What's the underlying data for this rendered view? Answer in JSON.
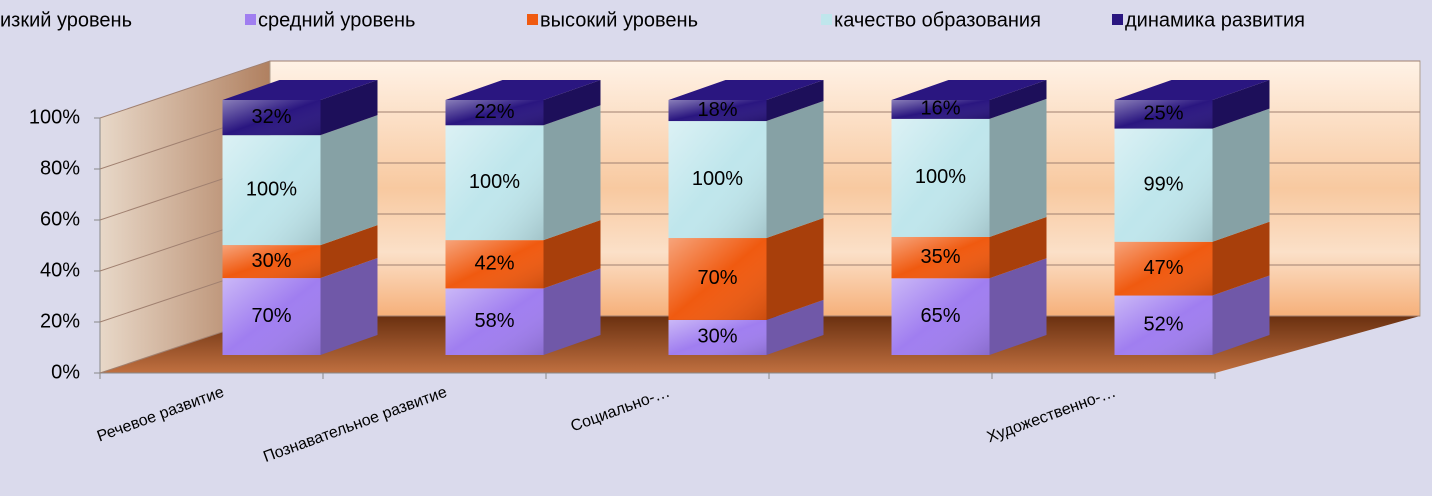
{
  "chart_data": {
    "type": "bar",
    "stacking": "percent",
    "categories": [
      "Речевое развитие",
      "Познавательное развитие",
      "Социально-…",
      null,
      "Художественно-…"
    ],
    "series": [
      {
        "name": "изкий уровень",
        "color": "#4472c4",
        "values": [
          0,
          0,
          0,
          0,
          0
        ]
      },
      {
        "name": "средний уровень",
        "color": "#a07ef0",
        "values": [
          70,
          58,
          30,
          65,
          52
        ],
        "value_labels": [
          "70%",
          "58%",
          "30%",
          "65%",
          "52%"
        ]
      },
      {
        "name": "высокий уровень",
        "color": "#f05a10",
        "values": [
          30,
          42,
          70,
          35,
          47
        ],
        "value_labels": [
          "30%",
          "42%",
          "70%",
          "35%",
          "47%"
        ]
      },
      {
        "name": "качество образования",
        "color": "#bfe6ec",
        "values": [
          100,
          100,
          100,
          100,
          99
        ],
        "value_labels": [
          "100%",
          "100%",
          "100%",
          "100%",
          "99%"
        ]
      },
      {
        "name": "динамика развития",
        "color": "#2a1680",
        "values": [
          32,
          22,
          18,
          16,
          25
        ],
        "value_labels": [
          "32%",
          "22%",
          "18%",
          "16%",
          "25%"
        ]
      }
    ],
    "ylim": [
      0,
      100
    ],
    "yticks": [
      {
        "value": 0,
        "label": "0%"
      },
      {
        "value": 20,
        "label": "20%"
      },
      {
        "value": 40,
        "label": "40%"
      },
      {
        "value": 60,
        "label": "60%"
      },
      {
        "value": 80,
        "label": "80%"
      },
      {
        "value": 100,
        "label": "100%"
      }
    ],
    "grid": true
  }
}
